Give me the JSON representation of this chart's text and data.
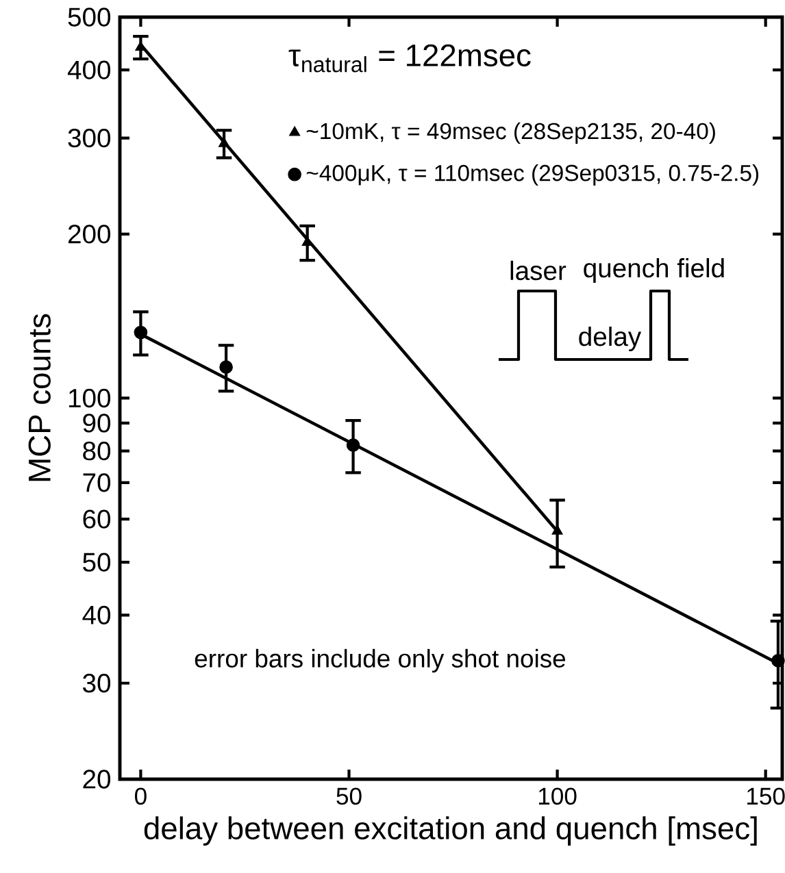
{
  "chart_data": {
    "type": "scatter",
    "xlabel": "delay between excitation and quench [msec]",
    "ylabel": "MCP counts",
    "xlim": [
      -5,
      154
    ],
    "ylim": [
      20,
      500
    ],
    "xticks": [
      0,
      50,
      100,
      150
    ],
    "yticks": [
      20,
      30,
      40,
      50,
      60,
      70,
      80,
      90,
      100,
      200,
      300,
      400,
      500
    ],
    "log": "y",
    "legend": "top right",
    "annotations": [
      "τ$_{natural}$ = 122msec",
      "error bars include only shot noise",
      "laser",
      "quench field",
      "delay"
    ],
    "series": [
      {
        "name": "~10mK, τ = 49msec (28Sep2135, 20-40)",
        "type": "scatter",
        "marker": "triangle",
        "color": "#000000",
        "x": [
          0,
          20,
          40,
          100
        ],
        "values": [
          440,
          293,
          193,
          57
        ],
        "errors": [
          21,
          17,
          14,
          8
        ]
      },
      {
        "name": "~400μK, τ = 110msec (29Sep0315, 0.75-2.5)",
        "type": "scatter",
        "marker": "circle",
        "color": "#000000",
        "x": [
          0,
          20.5,
          51,
          153
        ],
        "values": [
          132,
          114,
          82,
          33
        ],
        "errors": [
          12,
          11,
          9,
          6
        ]
      },
      {
        "type": "line",
        "color": "#000000",
        "x": [
          0,
          100
        ],
        "values": [
          445,
          57
        ]
      },
      {
        "type": "line",
        "color": "#000000",
        "x": [
          0,
          153
        ],
        "values": [
          131,
          32.6
        ]
      }
    ]
  }
}
